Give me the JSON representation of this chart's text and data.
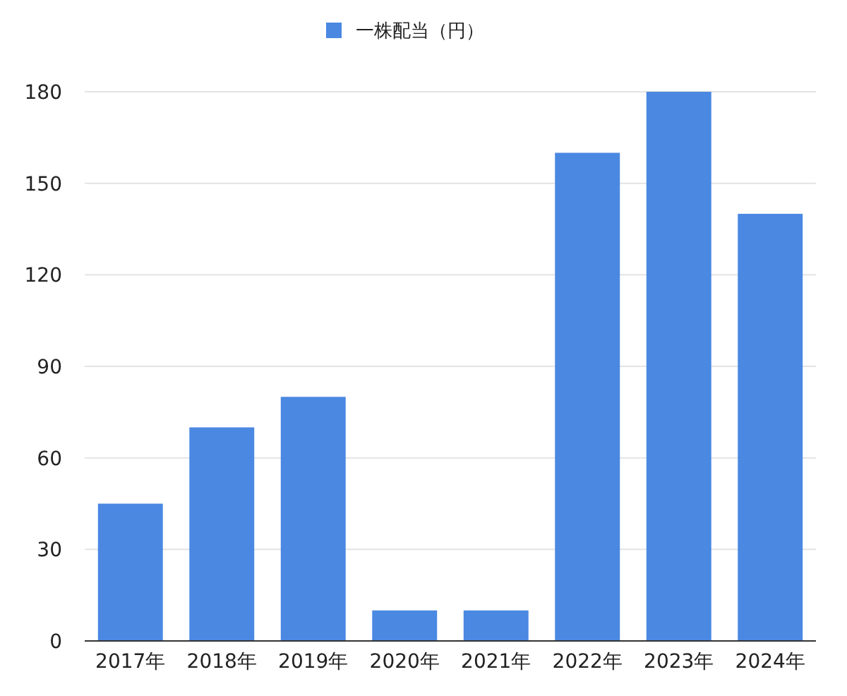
{
  "chart_data": {
    "type": "bar",
    "categories": [
      "2017年",
      "2018年",
      "2019年",
      "2020年",
      "2021年",
      "2022年",
      "2023年",
      "2024年"
    ],
    "series": [
      {
        "name": "一株配当（円）",
        "color": "#4a88e2",
        "values": [
          45,
          70,
          80,
          10,
          10,
          160,
          180,
          140
        ]
      }
    ],
    "ylim": [
      0,
      180
    ],
    "yticks": [
      0,
      30,
      60,
      90,
      120,
      150,
      180
    ],
    "grid": "y",
    "legend": "top"
  }
}
